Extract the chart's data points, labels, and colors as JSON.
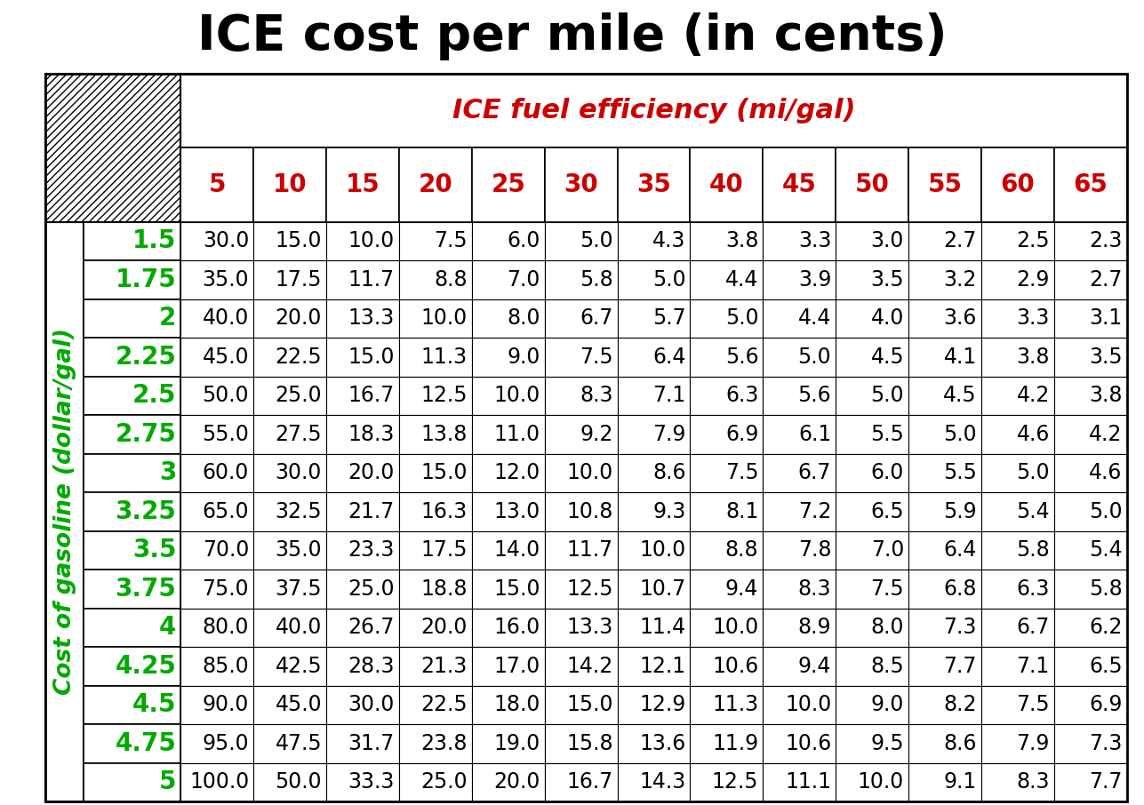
{
  "title": "ICE cost per mile (in cents)",
  "col_header_label": "ICE fuel efficiency (mi/gal)",
  "row_header_label": "Cost of gasoline (dollar/gal)",
  "col_headers": [
    "5",
    "10",
    "15",
    "20",
    "25",
    "30",
    "35",
    "40",
    "45",
    "50",
    "55",
    "60",
    "65"
  ],
  "row_headers": [
    "1.5",
    "1.75",
    "2",
    "2.25",
    "2.5",
    "2.75",
    "3",
    "3.25",
    "3.5",
    "3.75",
    "4",
    "4.25",
    "4.5",
    "4.75",
    "5"
  ],
  "table_data": [
    [
      30.0,
      15.0,
      10.0,
      7.5,
      6.0,
      5.0,
      4.3,
      3.8,
      3.3,
      3.0,
      2.7,
      2.5,
      2.3
    ],
    [
      35.0,
      17.5,
      11.7,
      8.8,
      7.0,
      5.8,
      5.0,
      4.4,
      3.9,
      3.5,
      3.2,
      2.9,
      2.7
    ],
    [
      40.0,
      20.0,
      13.3,
      10.0,
      8.0,
      6.7,
      5.7,
      5.0,
      4.4,
      4.0,
      3.6,
      3.3,
      3.1
    ],
    [
      45.0,
      22.5,
      15.0,
      11.3,
      9.0,
      7.5,
      6.4,
      5.6,
      5.0,
      4.5,
      4.1,
      3.8,
      3.5
    ],
    [
      50.0,
      25.0,
      16.7,
      12.5,
      10.0,
      8.3,
      7.1,
      6.3,
      5.6,
      5.0,
      4.5,
      4.2,
      3.8
    ],
    [
      55.0,
      27.5,
      18.3,
      13.8,
      11.0,
      9.2,
      7.9,
      6.9,
      6.1,
      5.5,
      5.0,
      4.6,
      4.2
    ],
    [
      60.0,
      30.0,
      20.0,
      15.0,
      12.0,
      10.0,
      8.6,
      7.5,
      6.7,
      6.0,
      5.5,
      5.0,
      4.6
    ],
    [
      65.0,
      32.5,
      21.7,
      16.3,
      13.0,
      10.8,
      9.3,
      8.1,
      7.2,
      6.5,
      5.9,
      5.4,
      5.0
    ],
    [
      70.0,
      35.0,
      23.3,
      17.5,
      14.0,
      11.7,
      10.0,
      8.8,
      7.8,
      7.0,
      6.4,
      5.8,
      5.4
    ],
    [
      75.0,
      37.5,
      25.0,
      18.8,
      15.0,
      12.5,
      10.7,
      9.4,
      8.3,
      7.5,
      6.8,
      6.3,
      5.8
    ],
    [
      80.0,
      40.0,
      26.7,
      20.0,
      16.0,
      13.3,
      11.4,
      10.0,
      8.9,
      8.0,
      7.3,
      6.7,
      6.2
    ],
    [
      85.0,
      42.5,
      28.3,
      21.3,
      17.0,
      14.2,
      12.1,
      10.6,
      9.4,
      8.5,
      7.7,
      7.1,
      6.5
    ],
    [
      90.0,
      45.0,
      30.0,
      22.5,
      18.0,
      15.0,
      12.9,
      11.3,
      10.0,
      9.0,
      8.2,
      7.5,
      6.9
    ],
    [
      95.0,
      47.5,
      31.7,
      23.8,
      19.0,
      15.8,
      13.6,
      11.9,
      10.6,
      9.5,
      8.6,
      7.9,
      7.3
    ],
    [
      100.0,
      50.0,
      33.3,
      25.0,
      20.0,
      16.7,
      14.3,
      12.5,
      11.1,
      10.0,
      9.1,
      8.3,
      7.7
    ]
  ],
  "title_fontsize": 40,
  "col_header_label_fontsize": 22,
  "col_header_fontsize": 20,
  "row_header_label_fontsize": 19,
  "row_header_fontsize": 20,
  "data_fontsize": 17,
  "title_color": "#000000",
  "col_header_label_color": "#CC0000",
  "col_header_color": "#CC0000",
  "row_header_color": "#00AA00",
  "data_color": "#000000",
  "bg_color": "#FFFFFF"
}
